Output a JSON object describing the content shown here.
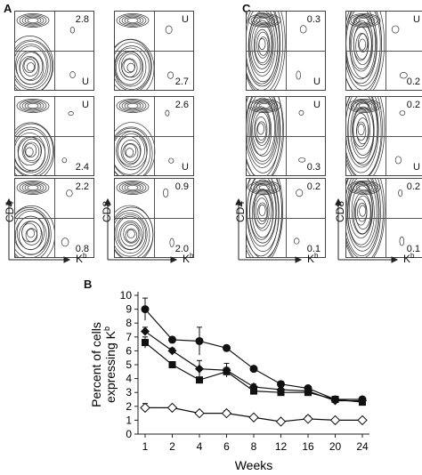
{
  "panels": {
    "A": {
      "label": "A",
      "xlabel": "K",
      "xlabel_sup": "b",
      "ylabel_left": "CD4",
      "ylabel_right": "CD8",
      "rows": [
        {
          "left": {
            "top": "2.8",
            "bot": "U"
          },
          "right": {
            "top": "U",
            "bot": "2.7"
          }
        },
        {
          "left": {
            "top": "U",
            "bot": "2.4"
          },
          "right": {
            "top": "2.6",
            "bot": "U"
          }
        },
        {
          "left": {
            "top": "2.2",
            "bot": "0.8"
          },
          "right": {
            "top": "0.9",
            "bot": "2.0"
          }
        }
      ]
    },
    "C": {
      "label": "C",
      "xlabel": "K",
      "xlabel_sup": "b",
      "ylabel_left": "CD4",
      "ylabel_right": "CD8",
      "rows": [
        {
          "left": {
            "top": "0.3",
            "bot": "U"
          },
          "right": {
            "top": "U",
            "bot": "0.2"
          }
        },
        {
          "left": {
            "top": "U",
            "bot": "0.3"
          },
          "right": {
            "top": "0.2",
            "bot": "U"
          }
        },
        {
          "left": {
            "top": "0.2",
            "bot": "0.1"
          },
          "right": {
            "top": "0.2",
            "bot": "0.1"
          }
        }
      ]
    }
  },
  "chart_data": {
    "type": "line",
    "label": "B",
    "xlabel": "Weeks",
    "ylabel_line1": "Percent of cells",
    "ylabel_line2": "expressing K",
    "ylabel_sup": "b",
    "categories": [
      "1",
      "2",
      "4",
      "6",
      "8",
      "12",
      "16",
      "20",
      "24"
    ],
    "ylim": [
      0,
      10
    ],
    "yticks": [
      0,
      1,
      2,
      3,
      4,
      5,
      6,
      7,
      8,
      9,
      10
    ],
    "series": [
      {
        "marker": "circle",
        "values": [
          9.0,
          6.8,
          6.7,
          6.2,
          4.7,
          3.6,
          3.3,
          2.5,
          2.5
        ],
        "errors": [
          0.8,
          0.2,
          1.0,
          0.2,
          0.2,
          0.2,
          0.2,
          0.1,
          0.1
        ]
      },
      {
        "marker": "diamond",
        "values": [
          7.4,
          6.0,
          4.7,
          4.6,
          3.4,
          3.2,
          3.1,
          2.4,
          2.4
        ],
        "errors": [
          0.3,
          0.2,
          0.6,
          0.5,
          0.2,
          0.2,
          0.2,
          0.1,
          0.1
        ]
      },
      {
        "marker": "square",
        "values": [
          6.6,
          5.0,
          3.9,
          4.5,
          3.1,
          3.0,
          3.0,
          2.5,
          2.3
        ],
        "errors": [
          0.4,
          0.2,
          0.2,
          0.3,
          0.1,
          0.1,
          0.1,
          0.1,
          0.1
        ]
      },
      {
        "marker": "open-diamond",
        "values": [
          1.9,
          1.9,
          1.5,
          1.5,
          1.2,
          0.9,
          1.1,
          1.0,
          1.0
        ],
        "errors": [
          0.3,
          0.1,
          0.1,
          0.2,
          0.1,
          0.1,
          0.2,
          0.1,
          0.1
        ]
      }
    ]
  }
}
